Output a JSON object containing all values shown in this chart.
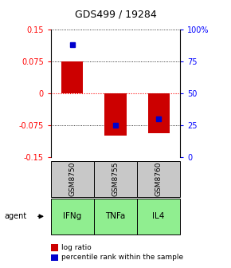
{
  "title": "GDS499 / 19284",
  "samples": [
    "GSM8750",
    "GSM8755",
    "GSM8760"
  ],
  "agents": [
    "IFNg",
    "TNFa",
    "IL4"
  ],
  "log_ratios": [
    0.075,
    -0.1,
    -0.095
  ],
  "percentile_ranks": [
    88,
    25,
    30
  ],
  "ylim_left": [
    -0.15,
    0.15
  ],
  "ylim_right": [
    0,
    100
  ],
  "yticks_left": [
    -0.15,
    -0.075,
    0,
    0.075,
    0.15
  ],
  "yticks_left_labels": [
    "-0.15",
    "-0.075",
    "0",
    "0.075",
    "0.15"
  ],
  "yticks_right": [
    0,
    25,
    50,
    75,
    100
  ],
  "yticks_right_labels": [
    "0",
    "25",
    "50",
    "75",
    "100%"
  ],
  "bar_color": "#cc0000",
  "dot_color": "#0000cc",
  "agent_bg_color": "#90ee90",
  "sample_bg_color": "#c8c8c8",
  "title_fontsize": 9,
  "tick_fontsize": 7,
  "label_fontsize": 7.5,
  "legend_fontsize": 6.5,
  "bar_width": 0.5
}
